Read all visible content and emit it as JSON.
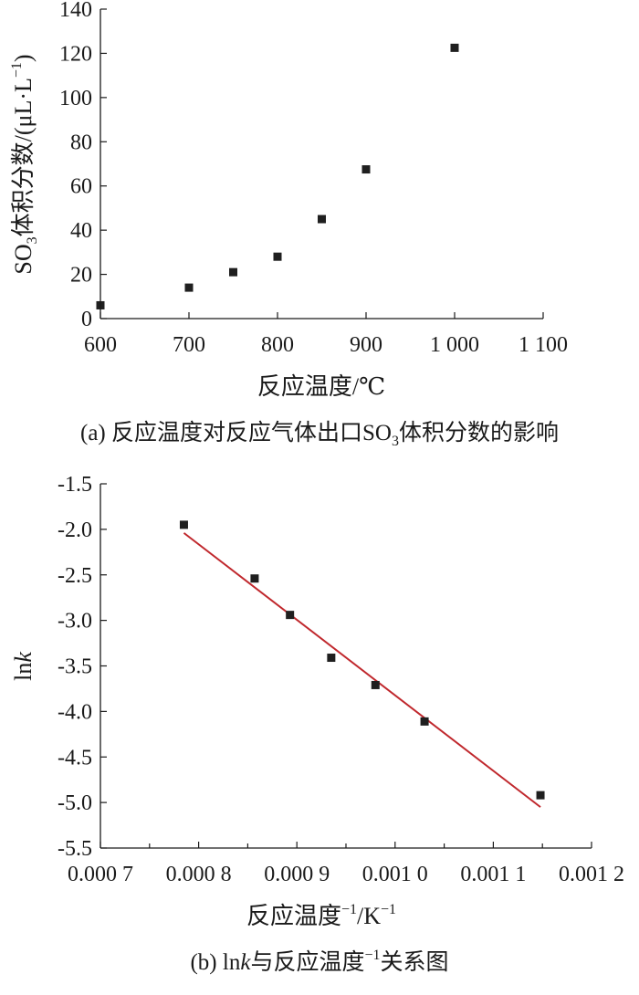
{
  "chart_data": [
    {
      "type": "scatter",
      "caption_prefix": "(a) 反应温度对反应气体出口SO",
      "caption_sub": "3",
      "caption_suffix": "体积分数的影响",
      "xlabel": "反应温度/℃",
      "ylabel_prefix": "SO",
      "ylabel_sub": "3",
      "ylabel_main": "体积分数/(μL·L",
      "ylabel_sup": "−1",
      "ylabel_close": ")",
      "xlim": [
        600,
        1100
      ],
      "ylim": [
        0,
        140
      ],
      "x_ticks": [
        600,
        700,
        800,
        900,
        1000,
        1100
      ],
      "x_tick_labels": [
        "600",
        "700",
        "800",
        "900",
        "1 000",
        "1 100"
      ],
      "y_ticks": [
        0,
        20,
        40,
        60,
        80,
        100,
        120,
        140
      ],
      "y_tick_labels": [
        "0",
        "20",
        "40",
        "60",
        "80",
        "100",
        "120",
        "140"
      ],
      "grid": false,
      "x": [
        600,
        700,
        750,
        800,
        850,
        900,
        1000
      ],
      "y": [
        6,
        14,
        21,
        28,
        45,
        67.5,
        122.5
      ],
      "marker_color": "#1f1f1f"
    },
    {
      "type": "scatter",
      "caption_prefix": "(b) ln",
      "caption_italic": "k",
      "caption_middle": "与反应温度",
      "caption_sup": "−1",
      "caption_suffix": "关系图",
      "xlabel_main": "反应温度",
      "xlabel_sup1": "−1",
      "xlabel_unit": "/K",
      "xlabel_sup2": "−1",
      "ylabel_prefix": "ln",
      "ylabel_italic": "k",
      "xlim": [
        0.0007,
        0.0012
      ],
      "ylim": [
        -5.5,
        -1.5
      ],
      "x_ticks": [
        0.0007,
        0.0008,
        0.0009,
        0.001,
        0.0011,
        0.0012
      ],
      "x_tick_labels": [
        "0.000 7",
        "0.000 8",
        "0.000 9",
        "0.001 0",
        "0.001 1",
        "0.001 2"
      ],
      "x_minor_ticks": [
        0.00075,
        0.00085,
        0.00095,
        0.00105,
        0.00115
      ],
      "y_ticks": [
        -1.5,
        -2.0,
        -2.5,
        -3.0,
        -3.5,
        -4.0,
        -4.5,
        -5.0,
        -5.5
      ],
      "y_tick_labels": [
        "-1.5",
        "-2.0",
        "-2.5",
        "-3.0",
        "-3.5",
        "-4.0",
        "-4.5",
        "-5.0",
        "-5.5"
      ],
      "grid": false,
      "x": [
        0.000785,
        0.000857,
        0.000893,
        0.000935,
        0.00098,
        0.00103,
        0.001148
      ],
      "y": [
        -1.95,
        -2.54,
        -2.94,
        -3.41,
        -3.71,
        -4.11,
        -4.92
      ],
      "marker_color": "#1f1f1f",
      "fit_line": {
        "x": [
          0.000785,
          0.001148
        ],
        "y": [
          -2.04,
          -5.05
        ],
        "color": "#c0282d"
      }
    }
  ]
}
